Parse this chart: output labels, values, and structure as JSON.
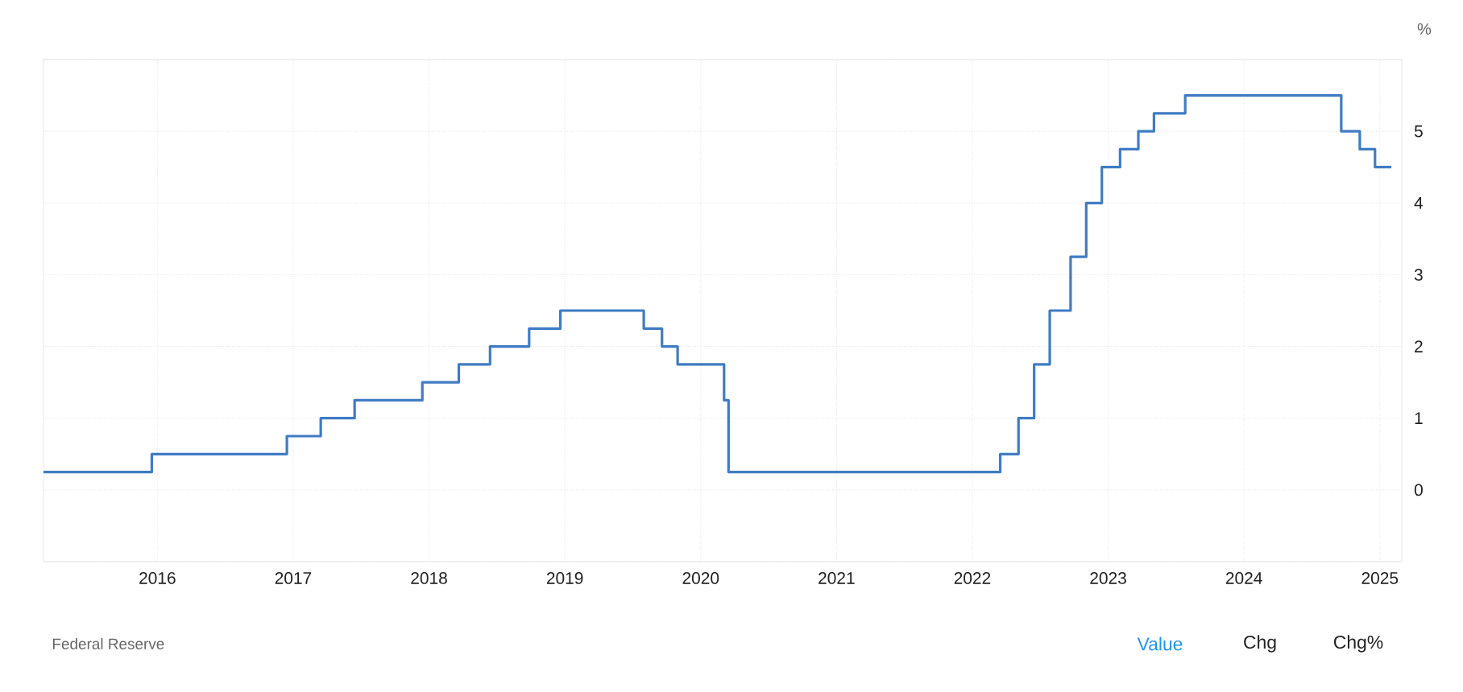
{
  "chart_data": {
    "type": "step",
    "ylabel": "%",
    "x": [
      "2015-03-01",
      "2015-12-17",
      "2016-12-15",
      "2017-03-16",
      "2017-06-15",
      "2017-12-14",
      "2018-03-22",
      "2018-06-14",
      "2018-09-27",
      "2018-12-20",
      "2019-08-01",
      "2019-09-19",
      "2019-10-31",
      "2020-03-04",
      "2020-03-16",
      "2022-03-17",
      "2022-05-05",
      "2022-06-16",
      "2022-07-28",
      "2022-09-22",
      "2022-11-03",
      "2022-12-15",
      "2023-02-02",
      "2023-03-23",
      "2023-05-04",
      "2023-07-27",
      "2024-09-19",
      "2024-11-08",
      "2024-12-19",
      "2025-02-01"
    ],
    "series": [
      {
        "color": "#3f7cc4",
        "values": [
          0.25,
          0.5,
          0.75,
          1.0,
          1.25,
          1.5,
          1.75,
          2.0,
          2.25,
          2.5,
          2.25,
          2.0,
          1.75,
          1.25,
          0.25,
          0.5,
          1.0,
          1.75,
          2.5,
          3.25,
          4.0,
          4.5,
          4.75,
          5.0,
          5.25,
          5.5,
          5.0,
          4.75,
          4.5,
          4.5
        ]
      }
    ],
    "xlim": [
      "2015-03-01",
      "2025-03-01"
    ],
    "xticks": [
      "2016",
      "2017",
      "2018",
      "2019",
      "2020",
      "2021",
      "2022",
      "2023",
      "2024",
      "2025"
    ],
    "ylim": [
      -1,
      6
    ],
    "yticks": [
      {
        "value": -1,
        "label": null
      },
      0,
      1,
      2,
      3,
      4,
      5,
      {
        "value": 6,
        "label": null
      }
    ],
    "grid": true,
    "annotations": [
      "Federal Reserve",
      "Value",
      "Chg",
      "Chg%"
    ]
  }
}
